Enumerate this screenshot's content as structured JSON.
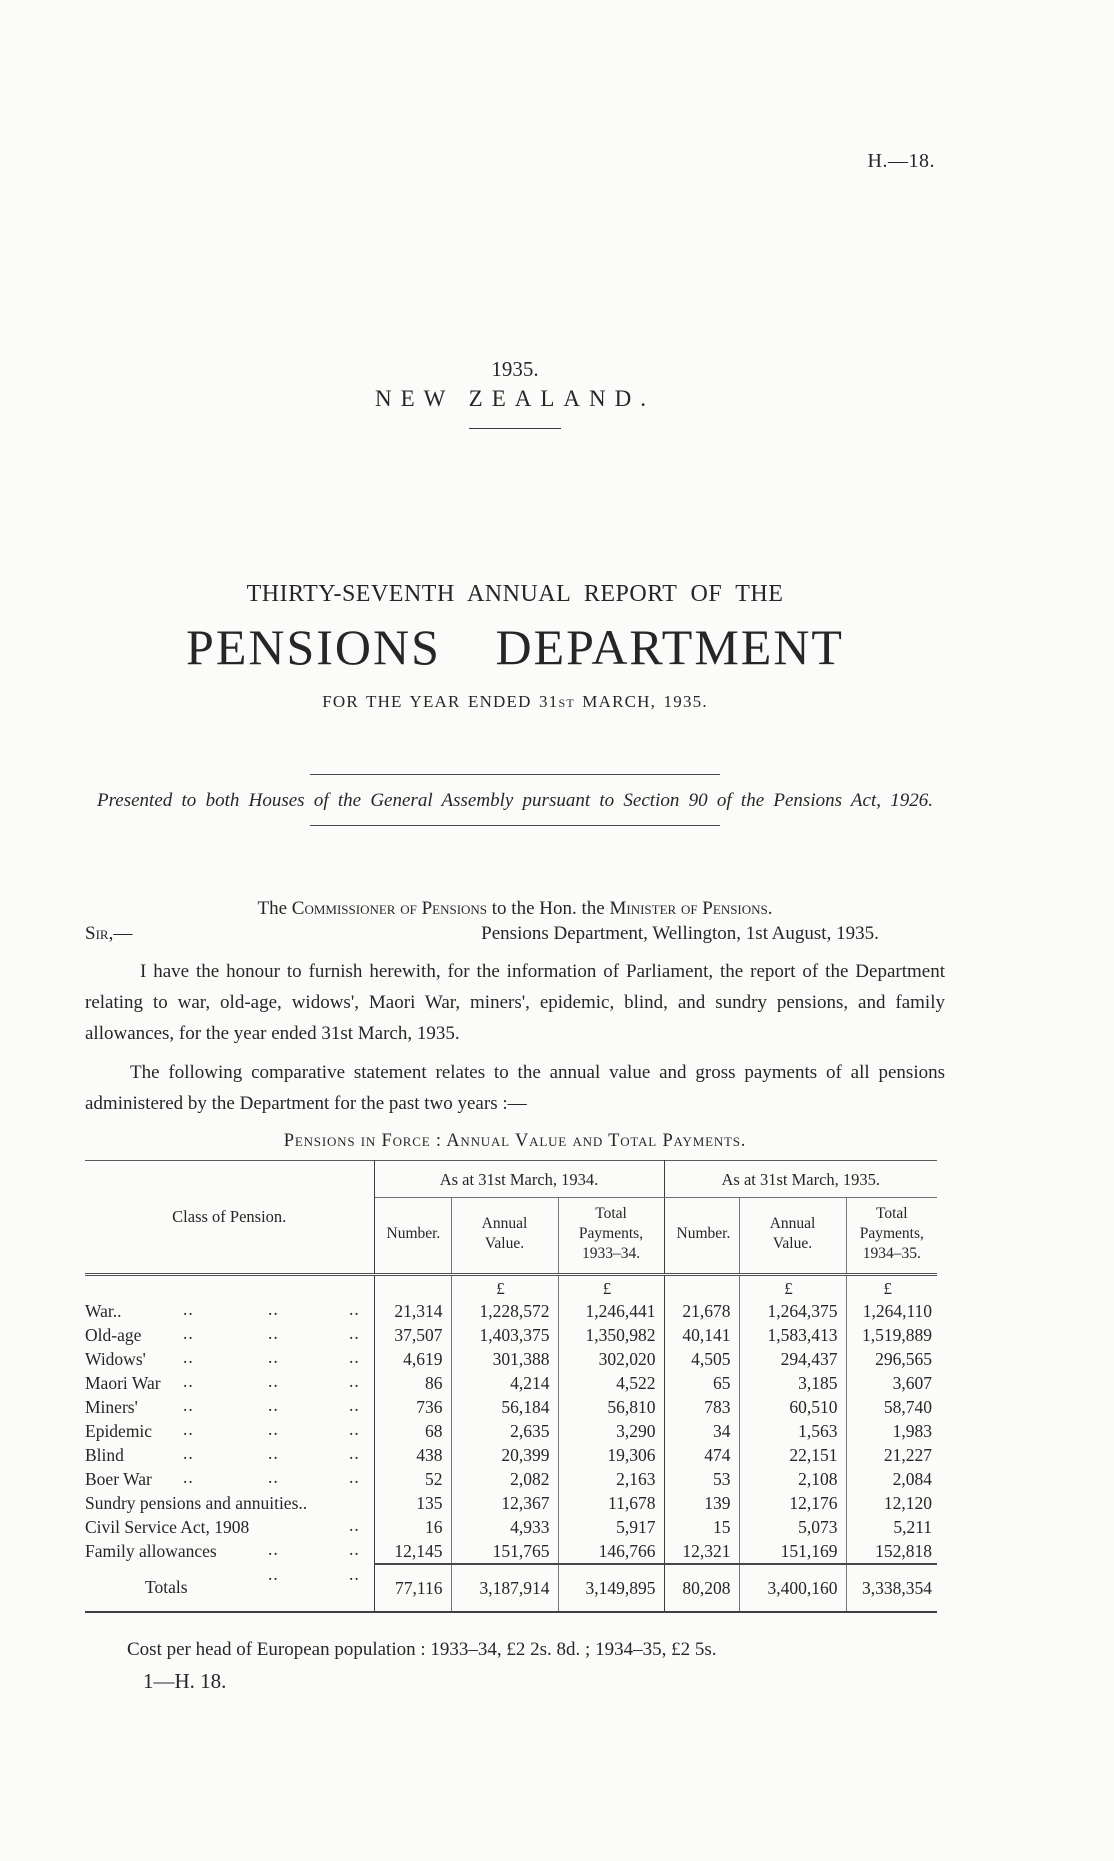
{
  "page": {
    "doc_ref": "H.—18.",
    "year": "1935.",
    "country": "NEW ZEALAND.",
    "report_line": "THIRTY-SEVENTH ANNUAL REPORT OF THE",
    "title": "PENSIONS DEPARTMENT",
    "subtitle_pre": "FOR THE YEAR ENDED 31",
    "subtitle_ord": "ST",
    "subtitle_post": " MARCH, 1935.",
    "presented": "Presented to both Houses of the General Assembly pursuant to Section 90 of the Pensions Act, 1926.",
    "salutation": {
      "pre": "The ",
      "sc1": "Commissioner of Pensions",
      "mid": " to the Hon. the ",
      "sc2": "Minister of Pensions",
      "post": "."
    },
    "sir": "Sir,—",
    "address": "Pensions Department, Wellington, 1st August, 1935.",
    "para1": "I have the honour to furnish herewith, for the information of Parliament, the report of the Department relating to war, old-age, widows', Maori War, miners', epidemic, blind, and sundry pensions, and family allowances, for the year ended 31st March, 1935.",
    "para2": "The following comparative statement relates to the annual value and gross payments of all pensions administered by the Department for the past two years :—",
    "footer_cost": "Cost per head of European population : 1933–34, £2 2s. 8d. ; 1934–35, £2 5s.",
    "footer_sig": "1—H. 18."
  },
  "table": {
    "caption": "Pensions in Force : Annual Value and Total Payments.",
    "col_class": "Class of Pension.",
    "group_1934": "As at 31st March, 1934.",
    "group_1935": "As at 31st March, 1935.",
    "sub_headers": [
      "Number.",
      "Annual Value.",
      "Total Payments, 1933–34.",
      "Number.",
      "Annual Value.",
      "Total Payments, 1934–35."
    ],
    "currency": "£",
    "rows": [
      {
        "label": "War..",
        "leader_slots": [
          0,
          1,
          2
        ],
        "values": [
          "21,314",
          "1,228,572",
          "1,246,441",
          "21,678",
          "1,264,375",
          "1,264,110"
        ]
      },
      {
        "label": "Old-age",
        "leader_slots": [
          0,
          1,
          2
        ],
        "values": [
          "37,507",
          "1,403,375",
          "1,350,982",
          "40,141",
          "1,583,413",
          "1,519,889"
        ]
      },
      {
        "label": "Widows'",
        "leader_slots": [
          0,
          1,
          2
        ],
        "values": [
          "4,619",
          "301,388",
          "302,020",
          "4,505",
          "294,437",
          "296,565"
        ]
      },
      {
        "label": "Maori War",
        "leader_slots": [
          0,
          1,
          2
        ],
        "values": [
          "86",
          "4,214",
          "4,522",
          "65",
          "3,185",
          "3,607"
        ]
      },
      {
        "label": "Miners'",
        "leader_slots": [
          0,
          1,
          2
        ],
        "values": [
          "736",
          "56,184",
          "56,810",
          "783",
          "60,510",
          "58,740"
        ]
      },
      {
        "label": "Epidemic",
        "leader_slots": [
          0,
          1,
          2
        ],
        "values": [
          "68",
          "2,635",
          "3,290",
          "34",
          "1,563",
          "1,983"
        ]
      },
      {
        "label": "Blind",
        "leader_slots": [
          0,
          1,
          2
        ],
        "values": [
          "438",
          "20,399",
          "19,306",
          "474",
          "22,151",
          "21,227"
        ]
      },
      {
        "label": "Boer War",
        "leader_slots": [
          0,
          1,
          2
        ],
        "values": [
          "52",
          "2,082",
          "2,163",
          "53",
          "2,108",
          "2,084"
        ]
      },
      {
        "label": "Sundry pensions and annuities..",
        "leader_slots": [],
        "values": [
          "135",
          "12,367",
          "11,678",
          "139",
          "12,176",
          "12,120"
        ]
      },
      {
        "label": "Civil Service Act, 1908",
        "leader_slots": [
          2
        ],
        "values": [
          "16",
          "4,933",
          "5,917",
          "15",
          "5,073",
          "5,211"
        ]
      },
      {
        "label": "Family allowances",
        "leader_slots": [
          1,
          2
        ],
        "values": [
          "12,145",
          "151,765",
          "146,766",
          "12,321",
          "151,169",
          "152,818"
        ]
      }
    ],
    "totals": {
      "label": "Totals",
      "leader_slots": [
        1,
        2
      ],
      "values": [
        "77,116",
        "3,187,914",
        "3,149,895",
        "80,208",
        "3,400,160",
        "3,338,354"
      ]
    }
  }
}
